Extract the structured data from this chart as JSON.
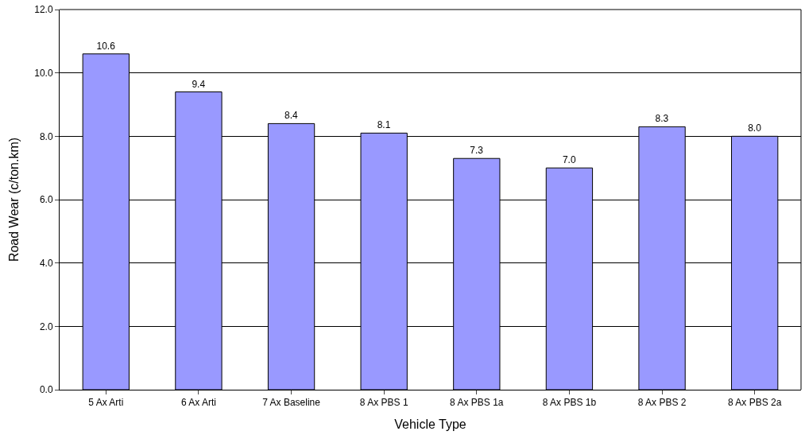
{
  "chart_data": {
    "type": "bar",
    "xlabel": "Vehicle Type",
    "ylabel": "Road Wear (c/ton.km)",
    "categories": [
      "5 Ax Arti",
      "6 Ax Arti",
      "7 Ax Baseline",
      "8 Ax PBS 1",
      "8 Ax PBS 1a",
      "8 Ax PBS 1b",
      "8 Ax PBS 2",
      "8 Ax PBS 2a"
    ],
    "values": [
      10.6,
      9.4,
      8.4,
      8.1,
      7.3,
      7.0,
      8.3,
      8.0
    ],
    "value_labels": [
      "10.6",
      "9.4",
      "8.4",
      "8.1",
      "7.3",
      "7.0",
      "8.3",
      "8.0"
    ],
    "color": "#9999ff",
    "ylim": [
      0,
      12
    ],
    "yticks": [
      {
        "value": 0,
        "label": "0.0"
      },
      {
        "value": 2,
        "label": "2.0"
      },
      {
        "value": 4,
        "label": "4.0"
      },
      {
        "value": 6,
        "label": "6.0"
      },
      {
        "value": 8,
        "label": "8.0"
      },
      {
        "value": 10,
        "label": "10.0"
      },
      {
        "value": 12,
        "label": "12.0"
      }
    ],
    "grid": "y",
    "legend": false
  }
}
